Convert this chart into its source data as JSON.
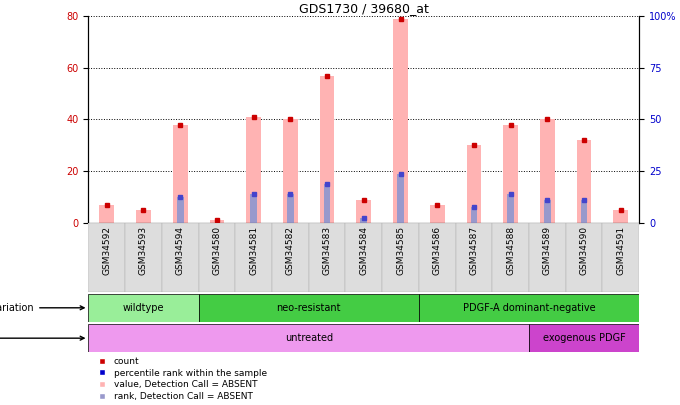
{
  "title": "GDS1730 / 39680_at",
  "samples": [
    "GSM34592",
    "GSM34593",
    "GSM34594",
    "GSM34580",
    "GSM34581",
    "GSM34582",
    "GSM34583",
    "GSM34584",
    "GSM34585",
    "GSM34586",
    "GSM34587",
    "GSM34588",
    "GSM34589",
    "GSM34590",
    "GSM34591"
  ],
  "pink_bars": [
    7,
    5,
    38,
    1,
    41,
    40,
    57,
    9,
    79,
    7,
    30,
    38,
    40,
    32,
    5
  ],
  "blue_bars": [
    0,
    0,
    10,
    0,
    11,
    11,
    15,
    2,
    19,
    0,
    6,
    11,
    9,
    9,
    0
  ],
  "ylim": [
    0,
    80
  ],
  "yticks_left": [
    0,
    20,
    40,
    60,
    80
  ],
  "ytick_labels_right": [
    "0",
    "25",
    "50",
    "75",
    "100%"
  ],
  "left_ycolor": "#cc0000",
  "right_ycolor": "#0000cc",
  "bar_pink_color": "#ffb3b3",
  "bar_blue_color": "#9999cc",
  "dot_red_color": "#cc0000",
  "dot_blue_color": "#4444cc",
  "background_color": "#ffffff",
  "genotype_data": [
    {
      "start": 0,
      "end": 3,
      "color": "#99ee99",
      "label": "wildtype"
    },
    {
      "start": 3,
      "end": 9,
      "color": "#44cc44",
      "label": "neo-resistant"
    },
    {
      "start": 9,
      "end": 15,
      "color": "#44cc44",
      "label": "PDGF-A dominant-negative"
    }
  ],
  "agent_data": [
    {
      "start": 0,
      "end": 12,
      "color": "#ee99ee",
      "label": "untreated"
    },
    {
      "start": 12,
      "end": 15,
      "color": "#cc44cc",
      "label": "exogenous PDGF"
    }
  ],
  "legend_items": [
    {
      "color": "#cc0000",
      "label": "count"
    },
    {
      "color": "#0000cc",
      "label": "percentile rank within the sample"
    },
    {
      "color": "#ffb3b3",
      "label": "value, Detection Call = ABSENT"
    },
    {
      "color": "#9999cc",
      "label": "rank, Detection Call = ABSENT"
    }
  ]
}
